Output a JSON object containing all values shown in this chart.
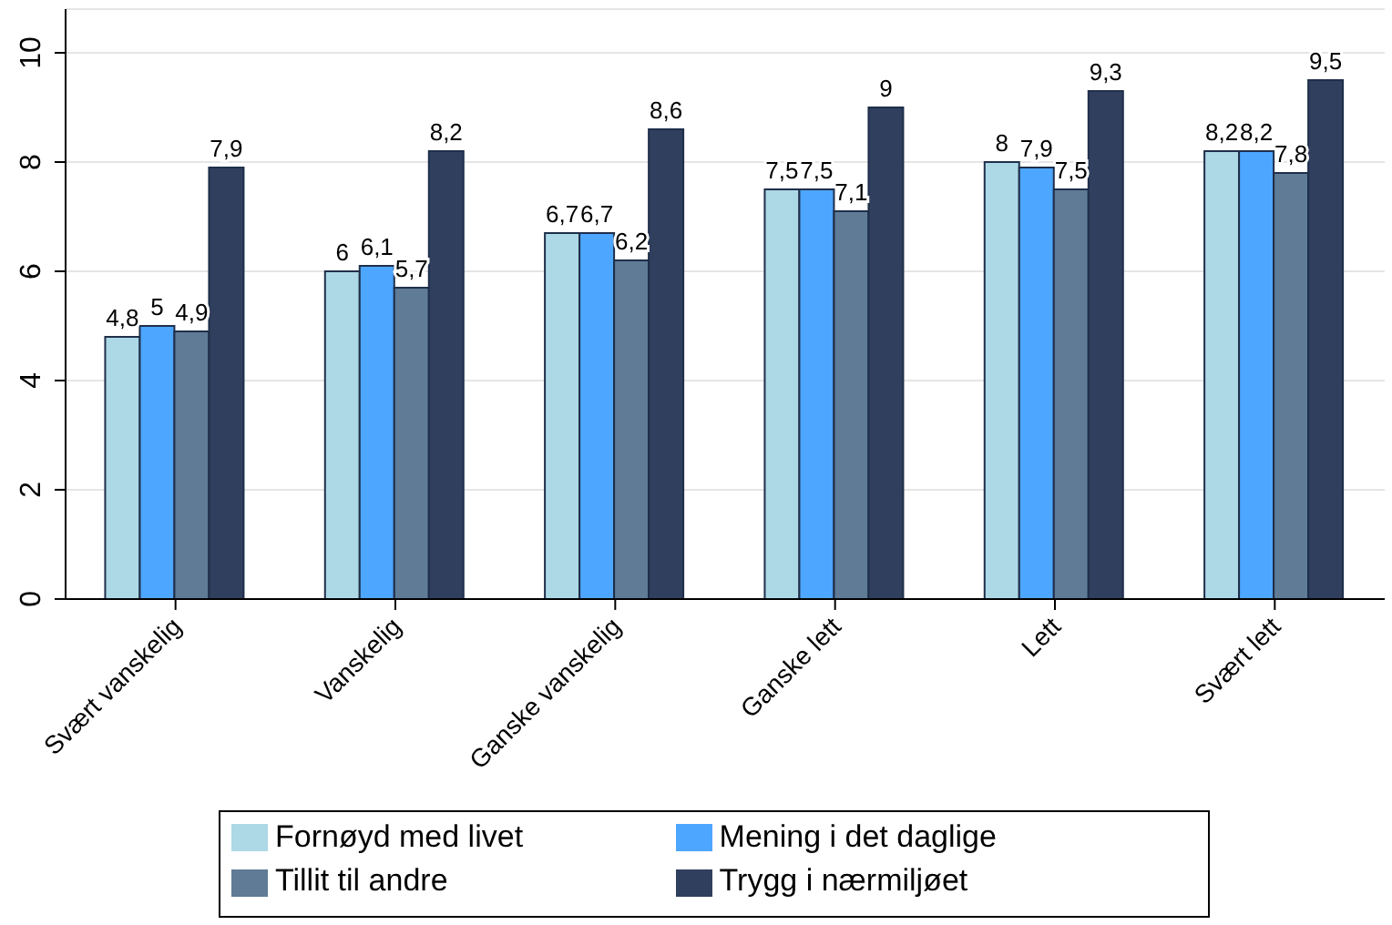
{
  "chart_data": {
    "type": "bar",
    "categories": [
      "Svært vanskelig",
      "Vanskelig",
      "Ganske vanskelig",
      "Ganske lett",
      "Lett",
      "Svært lett"
    ],
    "series": [
      {
        "name": "Fornøyd med livet",
        "color": "#add8e6",
        "values": [
          4.8,
          6,
          6.7,
          7.5,
          8,
          8.2
        ],
        "value_labels": [
          "4,8",
          "6",
          "6,7",
          "7,5",
          "8",
          "8,2"
        ]
      },
      {
        "name": "Mening i det daglige",
        "color": "#4da6ff",
        "values": [
          5,
          6.1,
          6.7,
          7.5,
          7.9,
          8.2
        ],
        "value_labels": [
          "5",
          "6,1",
          "6,7",
          "7,5",
          "7,9",
          "8,2"
        ]
      },
      {
        "name": "Tillit til andre",
        "color": "#5f7b96",
        "values": [
          4.9,
          5.7,
          6.2,
          7.1,
          7.5,
          7.8
        ],
        "value_labels": [
          "4,9",
          "5,7",
          "6,2",
          "7,1",
          "7,5",
          "7,8"
        ]
      },
      {
        "name": "Trygg i nærmiljøet",
        "color": "#313f5e",
        "values": [
          7.9,
          8.2,
          8.6,
          9,
          9.3,
          9.5
        ],
        "value_labels": [
          "7,9",
          "8,2",
          "8,6",
          "9",
          "9,3",
          "9,5"
        ]
      }
    ],
    "ylim": [
      0,
      10.8
    ],
    "yticks": [
      0,
      2,
      4,
      6,
      8,
      10
    ],
    "grid": "y",
    "legend": "bottom"
  }
}
